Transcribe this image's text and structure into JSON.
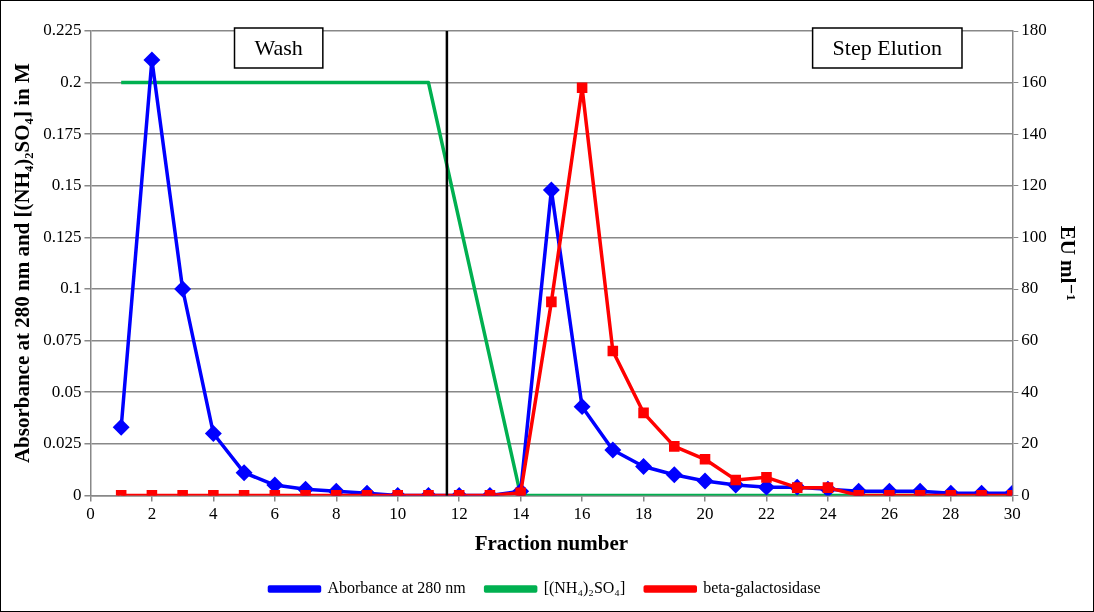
{
  "chart_data": {
    "type": "line",
    "xlabel": "Fraction number",
    "ylabel": "Absorbance at 280 nm and [(NH₄)₂SO₄] in M",
    "y2label": "EU ml⁻¹",
    "x": [
      1,
      2,
      3,
      4,
      5,
      6,
      7,
      8,
      9,
      10,
      11,
      12,
      13,
      14,
      15,
      16,
      17,
      18,
      19,
      20,
      21,
      22,
      23,
      24,
      25,
      26,
      27,
      28,
      29,
      30
    ],
    "series": [
      {
        "name": "Aborbance at 280 nm",
        "color": "#0000ff",
        "marker": "diamond",
        "values": [
          0.033,
          0.211,
          0.1,
          0.03,
          0.011,
          0.005,
          0.003,
          0.002,
          0.001,
          0,
          0,
          0,
          0,
          0.002,
          0.148,
          0.043,
          0.022,
          0.014,
          0.01,
          0.007,
          0.005,
          0.004,
          0.004,
          0.003,
          0.002,
          0.002,
          0.002,
          0.001,
          0.001,
          0.001
        ]
      },
      {
        "name": "[(NH₄)₂SO₄]",
        "color": "#00b050",
        "marker": "none",
        "x": [
          1,
          11,
          14,
          30
        ],
        "values": [
          0.2,
          0.2,
          0,
          0
        ]
      },
      {
        "name": "beta-galactosidase",
        "color": "#ff0000",
        "marker": "square",
        "axis": "y2",
        "values": [
          0,
          0,
          0,
          0,
          0,
          0,
          0,
          0,
          0,
          0,
          0,
          0,
          0,
          1,
          75,
          158,
          56,
          32,
          19,
          14,
          6,
          7,
          3,
          3,
          0,
          0,
          0,
          0,
          0,
          0
        ]
      }
    ],
    "xlim": [
      0,
      30
    ],
    "xticks": [
      0,
      2,
      4,
      6,
      8,
      10,
      12,
      14,
      16,
      18,
      20,
      22,
      24,
      26,
      28,
      30
    ],
    "ylim": [
      0,
      0.225
    ],
    "yticks": [
      0,
      0.025,
      0.05,
      0.075,
      0.1,
      0.125,
      0.15,
      0.175,
      0.2,
      0.225
    ],
    "y2lim": [
      0,
      180
    ],
    "y2ticks": [
      0,
      20,
      40,
      60,
      80,
      100,
      120,
      140,
      160,
      180
    ],
    "ref_lines": [
      {
        "axis": "x",
        "value": 11.6,
        "color": "#000000"
      }
    ],
    "annotations": [
      "Wash",
      "Step Elution"
    ],
    "grid": "y",
    "legend": "bottom",
    "line_style": "solid"
  }
}
